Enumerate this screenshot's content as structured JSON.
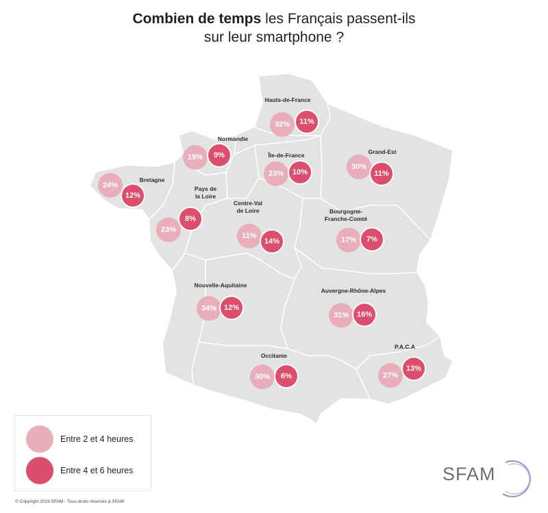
{
  "title": {
    "bold": "Combien de temps",
    "rest_line1": " les Français passent-ils",
    "line2": "sur leur smartphone ?"
  },
  "regions": [
    {
      "name": "Hauts-de-France",
      "light": "32%",
      "dark": "11%"
    },
    {
      "name": "Normandie",
      "light": "19%",
      "dark": "9%"
    },
    {
      "name": "Île-de-France",
      "light": "23%",
      "dark": "10%"
    },
    {
      "name": "Grand-Est",
      "light": "30%",
      "dark": "11%"
    },
    {
      "name": "Bretagne",
      "light": "24%",
      "dark": "12%"
    },
    {
      "name": "Pays de la Loire",
      "light": "23%",
      "dark": "8%"
    },
    {
      "name": "Centre-Val de Loire",
      "light": "11%",
      "dark": "14%"
    },
    {
      "name": "Bourgogne-Franche-Comté",
      "light": "17%",
      "dark": "7%"
    },
    {
      "name": "Nouvelle-Aquitaine",
      "light": "34%",
      "dark": "12%"
    },
    {
      "name": "Auvergne-Rhône-Alpes",
      "light": "31%",
      "dark": "16%"
    },
    {
      "name": "Occitanie",
      "light": "30%",
      "dark": "6%"
    },
    {
      "name": "P.A.C.A",
      "light": "27%",
      "dark": "13%"
    }
  ],
  "legend": {
    "light_label": "Entre 2 et 4 heures",
    "dark_label": "Entre 4 et 6 heures"
  },
  "colors": {
    "light": "#e8aebb",
    "dark": "#dc4f6c",
    "map_fill": "#e3e3e3",
    "border": "#ffffff"
  },
  "copyright": "© Copyright 2019 SFAM - Tous droits réservés à SFAM",
  "logo": "SFAM"
}
